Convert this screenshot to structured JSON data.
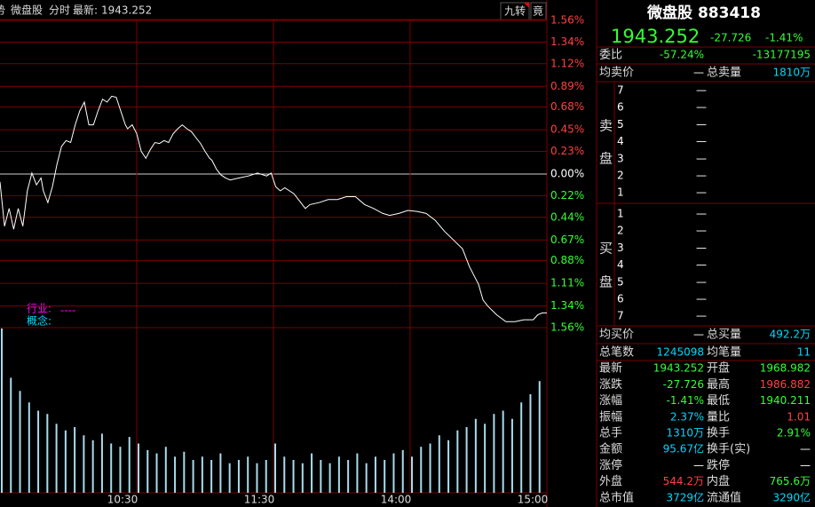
{
  "header": {
    "cut_icon": "势",
    "name": "微盘股",
    "mode": "分时",
    "latest_label": "最新:",
    "latest": "1943.252",
    "btn_nine": "九转",
    "btn_bid": "竟"
  },
  "chart_data": {
    "type": "line",
    "color": "#ffffff",
    "x": [
      0,
      2,
      4,
      6,
      8,
      10,
      12,
      14,
      16,
      18,
      19,
      21,
      23,
      25,
      27,
      29,
      31,
      33,
      35,
      37,
      39,
      41,
      43,
      45,
      47,
      49,
      51,
      53,
      55,
      56,
      58,
      60,
      62,
      64,
      66,
      68,
      70,
      72,
      74,
      76,
      78,
      80,
      82,
      84,
      86,
      88,
      90,
      92,
      93,
      95,
      97,
      99,
      101,
      105,
      109,
      113,
      117,
      119,
      121,
      123,
      125,
      129,
      132,
      134,
      136,
      140,
      144,
      148,
      152,
      156,
      160,
      164,
      168,
      171,
      175,
      179,
      183,
      187,
      191,
      195,
      199,
      203,
      206,
      210,
      212,
      214,
      218,
      222,
      226,
      230,
      234,
      236,
      238,
      240
    ],
    "values": [
      -0.08,
      -0.53,
      -0.35,
      -0.56,
      -0.35,
      -0.53,
      -0.17,
      0.01,
      -0.11,
      -0.04,
      -0.17,
      -0.29,
      -0.13,
      0.1,
      0.28,
      0.34,
      0.32,
      0.5,
      0.64,
      0.73,
      0.5,
      0.5,
      0.64,
      0.76,
      0.73,
      0.79,
      0.78,
      0.64,
      0.5,
      0.46,
      0.5,
      0.41,
      0.23,
      0.16,
      0.25,
      0.32,
      0.31,
      0.34,
      0.32,
      0.41,
      0.46,
      0.5,
      0.46,
      0.43,
      0.37,
      0.31,
      0.23,
      0.16,
      0.14,
      0.05,
      -0.01,
      -0.04,
      -0.06,
      -0.04,
      -0.02,
      0.01,
      -0.02,
      0.01,
      -0.13,
      -0.17,
      -0.14,
      -0.2,
      -0.29,
      -0.35,
      -0.31,
      -0.29,
      -0.26,
      -0.26,
      -0.23,
      -0.23,
      -0.31,
      -0.35,
      -0.4,
      -0.42,
      -0.4,
      -0.37,
      -0.38,
      -0.4,
      -0.47,
      -0.58,
      -0.67,
      -0.76,
      -0.94,
      -1.12,
      -1.28,
      -1.34,
      -1.43,
      -1.5,
      -1.5,
      -1.48,
      -1.48,
      -1.43,
      -1.41,
      -1.41
    ],
    "xlim": [
      0,
      240
    ],
    "ylim": [
      -1.56,
      1.56
    ],
    "yticks": [
      {
        "value": 1.56,
        "label": "1.56%"
      },
      {
        "value": 1.34,
        "label": "1.34%"
      },
      {
        "value": 1.12,
        "label": "1.12%"
      },
      {
        "value": 0.89,
        "label": "0.89%"
      },
      {
        "value": 0.68,
        "label": "0.68%"
      },
      {
        "value": 0.45,
        "label": "0.45%"
      },
      {
        "value": 0.23,
        "label": "0.23%"
      },
      {
        "value": 0,
        "label": "0.00%"
      },
      {
        "value": -0.22,
        "label": "0.22%"
      },
      {
        "value": -0.44,
        "label": "0.44%"
      },
      {
        "value": -0.67,
        "label": "0.67%"
      },
      {
        "value": -0.88,
        "label": "0.88%"
      },
      {
        "value": -1.11,
        "label": "1.11%"
      },
      {
        "value": -1.34,
        "label": "1.34%"
      },
      {
        "value": -1.56,
        "label": "1.56%"
      }
    ],
    "xticks": [
      {
        "value": 60,
        "label": "10:30"
      },
      {
        "value": 120,
        "label": "11:30"
      },
      {
        "value": 180,
        "label": "14:00"
      },
      {
        "value": 240,
        "label": "15:00"
      }
    ],
    "annotations": {
      "industry": "行业:",
      "industry_value": "----",
      "concept": "概念:"
    },
    "volume": {
      "color": "#a8dcec",
      "ylim": [
        0,
        100
      ],
      "x": [
        0,
        4,
        8,
        12,
        16,
        20,
        24,
        28,
        32,
        36,
        40,
        44,
        48,
        52,
        56,
        60,
        64,
        68,
        72,
        76,
        80,
        84,
        88,
        92,
        96,
        100,
        104,
        108,
        112,
        116,
        120,
        124,
        128,
        132,
        136,
        140,
        144,
        148,
        152,
        156,
        160,
        164,
        168,
        172,
        176,
        180,
        184,
        188,
        192,
        196,
        200,
        204,
        208,
        212,
        216,
        220,
        224,
        228,
        232,
        236
      ],
      "values": [
        100,
        70,
        62,
        55,
        50,
        48,
        42,
        38,
        40,
        35,
        32,
        36,
        30,
        28,
        34,
        30,
        26,
        24,
        28,
        22,
        25,
        20,
        22,
        20,
        24,
        18,
        20,
        22,
        18,
        20,
        30,
        22,
        20,
        18,
        24,
        20,
        18,
        22,
        20,
        24,
        18,
        22,
        20,
        24,
        26,
        22,
        28,
        30,
        35,
        32,
        38,
        40,
        45,
        42,
        48,
        50,
        45,
        55,
        60,
        68
      ]
    }
  },
  "quote": {
    "title": "微盘股 883418",
    "price": "1943.252",
    "change": "-27.726",
    "change_pct": "-1.41%",
    "ratio": {
      "l1": "委比",
      "v1": "-57.24%",
      "c1": "#33ff33",
      "v2": "-13177195",
      "c2": "#33ff33"
    },
    "avg_sell": {
      "l1": "均卖价",
      "v1": "—",
      "c1": "#ffffff",
      "l2": "总卖量",
      "v2": "1810万",
      "c2": "#00d8ff"
    },
    "sell_side": [
      "卖",
      "盘"
    ],
    "sell_levels": [
      {
        "level": "7",
        "price": "—"
      },
      {
        "level": "6",
        "price": "—"
      },
      {
        "level": "5",
        "price": "—"
      },
      {
        "level": "4",
        "price": "—"
      },
      {
        "level": "3",
        "price": "—"
      },
      {
        "level": "2",
        "price": "—"
      },
      {
        "level": "1",
        "price": "—"
      }
    ],
    "buy_side": [
      "买",
      "盘"
    ],
    "buy_levels": [
      {
        "level": "1",
        "price": "—"
      },
      {
        "level": "2",
        "price": "—"
      },
      {
        "level": "3",
        "price": "—"
      },
      {
        "level": "4",
        "price": "—"
      },
      {
        "level": "5",
        "price": "—"
      },
      {
        "level": "6",
        "price": "—"
      },
      {
        "level": "7",
        "price": "—"
      }
    ],
    "avg_buy": {
      "l1": "均买价",
      "v1": "—",
      "c1": "#ffffff",
      "l2": "总买量",
      "v2": "492.2万",
      "c2": "#00d8ff"
    },
    "stats": [
      {
        "l1": "总笔数",
        "v1": "1245098",
        "c1": "#00d8ff",
        "l2": "均笔量",
        "v2": "11",
        "c2": "#00d8ff"
      },
      {
        "l1": "最新",
        "v1": "1943.252",
        "c1": "#33ff33",
        "l2": "开盘",
        "v2": "1968.982",
        "c2": "#33ff33"
      },
      {
        "l1": "涨跌",
        "v1": "-27.726",
        "c1": "#33ff33",
        "l2": "最高",
        "v2": "1986.882",
        "c2": "#ff4040"
      },
      {
        "l1": "涨幅",
        "v1": "-1.41%",
        "c1": "#33ff33",
        "l2": "最低",
        "v2": "1940.211",
        "c2": "#33ff33"
      },
      {
        "l1": "振幅",
        "v1": "2.37%",
        "c1": "#00d8ff",
        "l2": "量比",
        "v2": "1.01",
        "c2": "#ff4040"
      },
      {
        "l1": "总手",
        "v1": "1310万",
        "c1": "#00d8ff",
        "l2": "换手",
        "v2": "2.91%",
        "c2": "#33ff33"
      },
      {
        "l1": "金额",
        "v1": "95.67亿",
        "c1": "#00d8ff",
        "l2": "换手(实)",
        "v2": "—",
        "c2": "#ffffff"
      },
      {
        "l1": "涨停",
        "v1": "—",
        "c1": "#ffffff",
        "l2": "跌停",
        "v2": "—",
        "c2": "#ffffff"
      },
      {
        "l1": "外盘",
        "v1": "544.2万",
        "c1": "#ff4040",
        "l2": "内盘",
        "v2": "765.6万",
        "c2": "#33ff33"
      },
      {
        "l1": "总市值",
        "v1": "3729亿",
        "c1": "#00d8ff",
        "l2": "流通值",
        "v2": "3290亿",
        "c2": "#00d8ff"
      }
    ]
  }
}
